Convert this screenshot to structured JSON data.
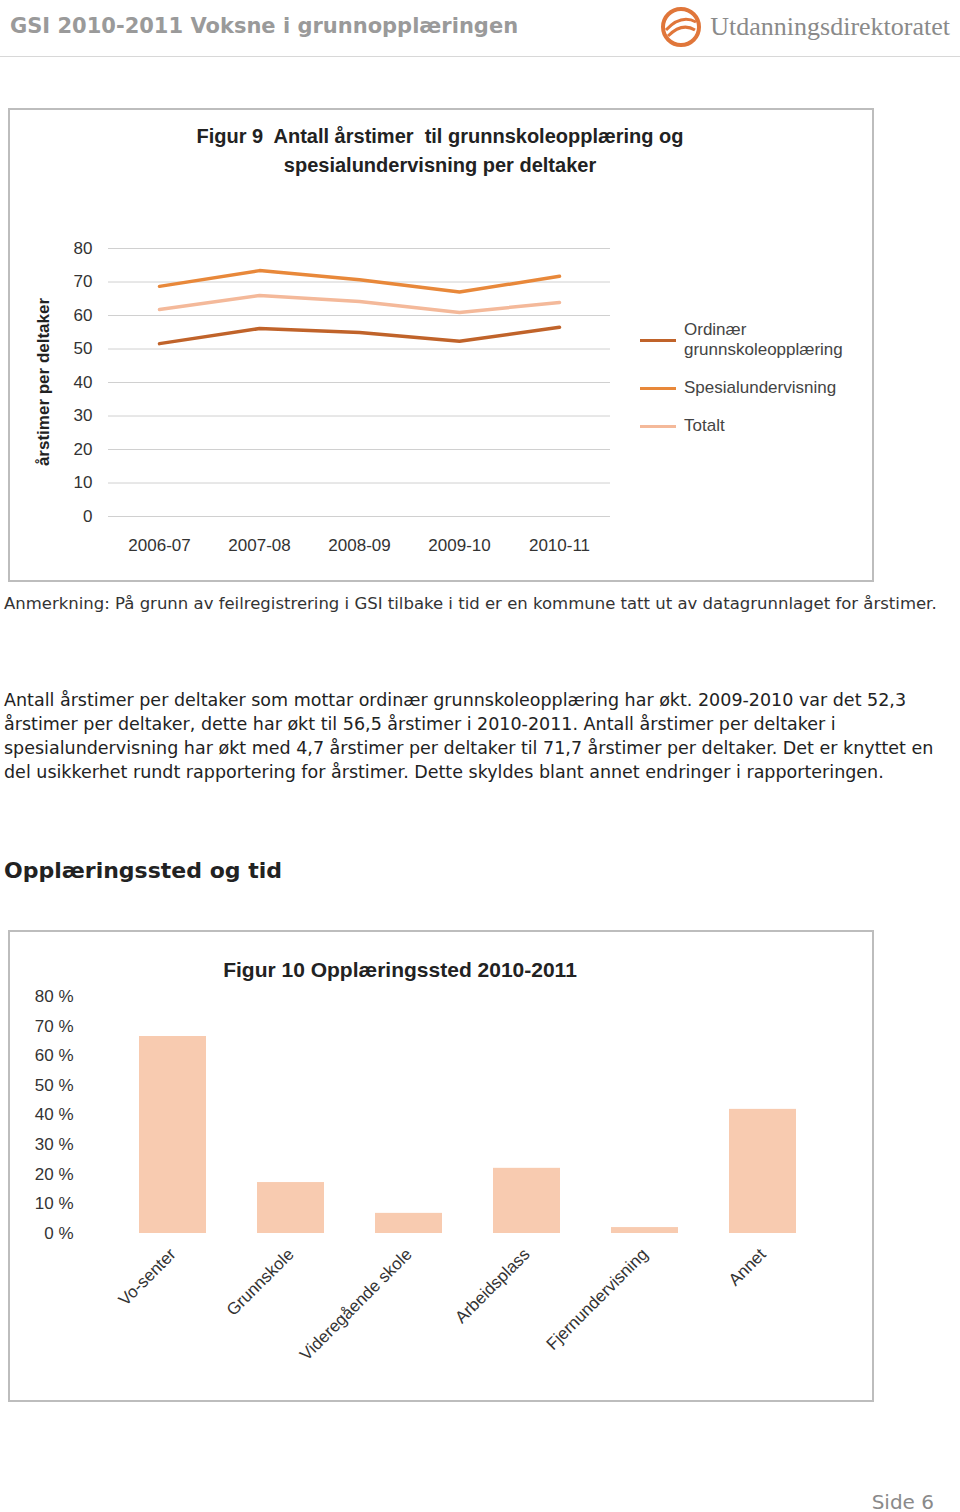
{
  "header": {
    "title": "GSI 2010-2011 Voksne i grunnopplæringen",
    "logo_text": "Utdanningsdirektoratet"
  },
  "chart_data": [
    {
      "type": "line",
      "title": "Figur 9  Antall årstimer  til grunnskoleopplæring og spesialundervisning per deltaker",
      "ylabel": "årstimer per deltaker",
      "categories": [
        "2006-07",
        "2007-08",
        "2008-09",
        "2009-10",
        "2010-11"
      ],
      "series": [
        {
          "name": "Ordinær grunnskoleopplæring",
          "color": "#c0632a",
          "values": [
            51.6,
            56.1,
            54.9,
            52.3,
            56.5
          ]
        },
        {
          "name": "Spesialundervisning",
          "color": "#e8883a",
          "values": [
            68.7,
            73.4,
            70.7,
            67.0,
            71.7
          ]
        },
        {
          "name": "Totalt",
          "color": "#f4b99a",
          "values": [
            61.8,
            66.0,
            64.2,
            60.9,
            63.9
          ]
        }
      ],
      "ylim": [
        0,
        80
      ],
      "yticks": [
        0,
        10,
        20,
        30,
        40,
        50,
        60,
        70,
        80
      ],
      "grid": true,
      "legend": "right"
    },
    {
      "type": "bar",
      "title": "Figur 10 Opplæringssted 2010-2011",
      "categories": [
        "Vo-senter",
        "Grunnskole",
        "Videregående skole",
        "Arbeidsplass",
        "Fjernundervisning",
        "Annet"
      ],
      "values": [
        66.5,
        17.2,
        6.8,
        22.0,
        2.0,
        41.9
      ],
      "color": "#f8cbb0",
      "ylim": [
        0,
        80
      ],
      "yticks": [
        {
          "value": 0,
          "label": "0 %"
        },
        {
          "value": 10,
          "label": "10 %"
        },
        {
          "value": 20,
          "label": "20 %"
        },
        {
          "value": 30,
          "label": "30 %"
        },
        {
          "value": 40,
          "label": "40 %"
        },
        {
          "value": 50,
          "label": "50 %"
        },
        {
          "value": 60,
          "label": "60 %"
        },
        {
          "value": 70,
          "label": "70 %"
        },
        {
          "value": 80,
          "label": "80 %"
        }
      ],
      "grid": false
    }
  ],
  "note": "Anmerkning: På grunn av feilregistrering i GSI tilbake i tid er en kommune tatt ut av datagrunnlaget for årstimer.",
  "paragraph": "Antall årstimer per deltaker som mottar ordinær grunnskoleopplæring har økt. 2009-2010 var det 52,3 årstimer per deltaker, dette har økt til 56,5 årstimer i 2010-2011. Antall årstimer per deltaker i spesialundervisning har økt med 4,7 årstimer per deltaker til 71,7 årstimer per deltaker. Det er knyttet en del usikkerhet rundt rapportering for årstimer. Dette skyldes blant annet endringer i rapporteringen.",
  "heading": "Opplæringssted og tid",
  "footer": "Side 6"
}
